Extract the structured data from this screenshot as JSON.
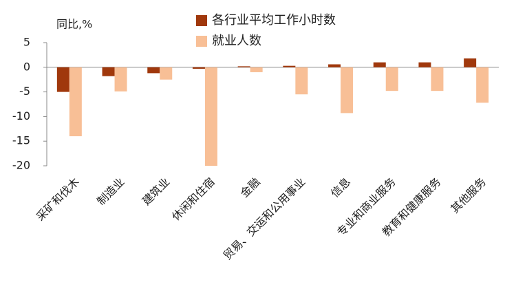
{
  "chart_data": {
    "type": "bar",
    "y_label": "同比,%",
    "categories": [
      "采矿和伐木",
      "制造业",
      "建筑业",
      "休闲和住宿",
      "金融",
      "贸易、交运和公用事业",
      "信息",
      "专业和商业服务",
      "教育和健康服务",
      "其他服务"
    ],
    "series": [
      {
        "name": "各行业平均工作小时数",
        "color": "#a0380c",
        "values": [
          -5.0,
          -1.8,
          -1.2,
          -0.3,
          0.2,
          0.3,
          0.6,
          1.0,
          1.0,
          1.8
        ]
      },
      {
        "name": "就业人数",
        "color": "#f8bf96",
        "values": [
          -14.0,
          -4.9,
          -2.5,
          -20.0,
          -1.0,
          -5.5,
          -9.3,
          -4.8,
          -4.8,
          -7.2
        ]
      }
    ],
    "ylim": [
      -20,
      5
    ],
    "yticks": [
      5,
      0,
      -5,
      -10,
      -15,
      -20
    ],
    "grid": false
  }
}
